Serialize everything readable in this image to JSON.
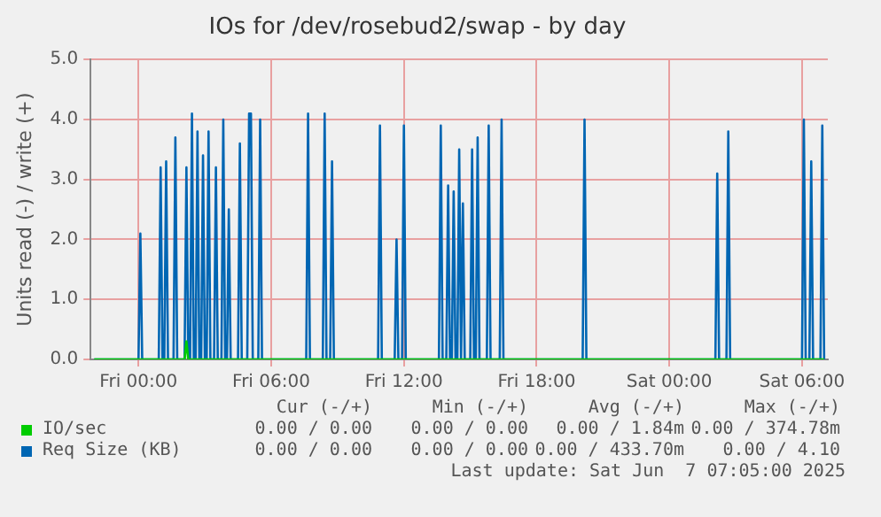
{
  "chart_data": {
    "type": "line",
    "title": "IOs for /dev/rosebud2/swap - by day",
    "ylabel": "Units read (-) / write (+)",
    "xlim": [
      "2025-06-05T21:50",
      "2025-06-07T07:10"
    ],
    "xticks": [
      {
        "value": "2025-06-06T00:00",
        "label": "Fri 00:00"
      },
      {
        "value": "2025-06-06T06:00",
        "label": "Fri 06:00"
      },
      {
        "value": "2025-06-06T12:00",
        "label": "Fri 12:00"
      },
      {
        "value": "2025-06-06T18:00",
        "label": "Fri 18:00"
      },
      {
        "value": "2025-06-07T00:00",
        "label": "Sat 00:00"
      },
      {
        "value": "2025-06-07T06:00",
        "label": "Sat 06:00"
      }
    ],
    "ylim": [
      0,
      5
    ],
    "yticks": [
      {
        "value": 0,
        "label": "0.0"
      },
      {
        "value": 1,
        "label": "1.0"
      },
      {
        "value": 2,
        "label": "2.0"
      },
      {
        "value": 3,
        "label": "3.0"
      },
      {
        "value": 4,
        "label": "4.0"
      },
      {
        "value": 5,
        "label": "5.0"
      }
    ],
    "grid": true,
    "legend": "bottom",
    "marker": "none",
    "line_style": "solid",
    "series": [
      {
        "name": "IO/sec",
        "color": "#00cc00",
        "x": [
          "2025-06-05T22:00",
          "2025-06-06T02:05",
          "2025-06-06T02:10",
          "2025-06-06T02:15",
          "2025-06-07T07:00"
        ],
        "values": [
          0,
          0,
          0.3,
          0,
          0
        ]
      },
      {
        "name": "Req Size (KB)",
        "color": "#0066b3",
        "x": [
          "2025-06-05T22:00",
          "2025-06-06T00:00",
          "2025-06-06T00:05",
          "2025-06-06T00:10",
          "2025-06-06T00:55",
          "2025-06-06T01:00",
          "2025-06-06T01:05",
          "2025-06-06T01:10",
          "2025-06-06T01:15",
          "2025-06-06T01:20",
          "2025-06-06T01:35",
          "2025-06-06T01:40",
          "2025-06-06T01:45",
          "2025-06-06T02:05",
          "2025-06-06T02:10",
          "2025-06-06T02:15",
          "2025-06-06T02:20",
          "2025-06-06T02:25",
          "2025-06-06T02:30",
          "2025-06-06T02:35",
          "2025-06-06T02:40",
          "2025-06-06T02:45",
          "2025-06-06T02:50",
          "2025-06-06T02:55",
          "2025-06-06T03:00",
          "2025-06-06T03:05",
          "2025-06-06T03:10",
          "2025-06-06T03:15",
          "2025-06-06T03:25",
          "2025-06-06T03:30",
          "2025-06-06T03:35",
          "2025-06-06T03:45",
          "2025-06-06T03:50",
          "2025-06-06T03:55",
          "2025-06-06T04:00",
          "2025-06-06T04:05",
          "2025-06-06T04:10",
          "2025-06-06T04:30",
          "2025-06-06T04:35",
          "2025-06-06T04:40",
          "2025-06-06T04:55",
          "2025-06-06T05:00",
          "2025-06-06T05:05",
          "2025-06-06T05:10",
          "2025-06-06T05:25",
          "2025-06-06T05:30",
          "2025-06-06T05:35",
          "2025-06-06T07:35",
          "2025-06-06T07:40",
          "2025-06-06T07:45",
          "2025-06-06T08:20",
          "2025-06-06T08:25",
          "2025-06-06T08:30",
          "2025-06-06T08:40",
          "2025-06-06T08:45",
          "2025-06-06T08:50",
          "2025-06-06T10:50",
          "2025-06-06T10:55",
          "2025-06-06T11:00",
          "2025-06-06T11:35",
          "2025-06-06T11:40",
          "2025-06-06T11:45",
          "2025-06-06T11:55",
          "2025-06-06T12:00",
          "2025-06-06T12:05",
          "2025-06-06T13:35",
          "2025-06-06T13:40",
          "2025-06-06T13:45",
          "2025-06-06T13:55",
          "2025-06-06T14:00",
          "2025-06-06T14:05",
          "2025-06-06T14:10",
          "2025-06-06T14:15",
          "2025-06-06T14:20",
          "2025-06-06T14:25",
          "2025-06-06T14:30",
          "2025-06-06T14:35",
          "2025-06-06T14:40",
          "2025-06-06T14:45",
          "2025-06-06T15:00",
          "2025-06-06T15:05",
          "2025-06-06T15:10",
          "2025-06-06T15:15",
          "2025-06-06T15:20",
          "2025-06-06T15:25",
          "2025-06-06T15:45",
          "2025-06-06T15:50",
          "2025-06-06T15:55",
          "2025-06-06T16:20",
          "2025-06-06T16:25",
          "2025-06-06T16:30",
          "2025-06-06T20:05",
          "2025-06-06T20:10",
          "2025-06-06T20:15",
          "2025-06-07T02:05",
          "2025-06-07T02:10",
          "2025-06-07T02:15",
          "2025-06-07T02:35",
          "2025-06-07T02:40",
          "2025-06-07T02:45",
          "2025-06-07T06:00",
          "2025-06-07T06:05",
          "2025-06-07T06:10",
          "2025-06-07T06:20",
          "2025-06-07T06:25",
          "2025-06-07T06:30",
          "2025-06-07T06:50",
          "2025-06-07T06:55",
          "2025-06-07T07:00"
        ],
        "values": [
          0,
          0,
          2.1,
          0,
          0,
          3.2,
          0,
          0,
          3.3,
          0,
          0,
          3.7,
          0,
          0,
          3.2,
          0,
          0,
          4.1,
          0,
          0,
          3.8,
          0,
          0,
          3.4,
          0,
          0,
          3.8,
          0,
          0,
          3.2,
          0,
          0,
          4.0,
          0,
          0,
          2.5,
          0,
          0,
          3.6,
          0,
          0,
          4.1,
          4.1,
          0,
          0,
          4.0,
          0,
          0,
          4.1,
          0,
          0,
          4.1,
          0,
          0,
          3.3,
          0,
          0,
          3.9,
          0,
          0,
          2.0,
          0,
          0,
          3.9,
          0,
          0,
          3.9,
          0,
          0,
          2.9,
          0,
          0,
          2.8,
          0,
          0,
          3.5,
          0,
          2.6,
          0,
          0,
          3.5,
          0,
          0,
          3.7,
          0,
          0,
          3.9,
          0,
          0,
          4.0,
          0,
          0,
          4.0,
          0,
          0,
          3.1,
          0,
          0,
          3.8,
          0,
          0,
          4.0,
          0,
          0,
          3.3,
          0,
          0,
          3.9,
          0
        ]
      }
    ],
    "annotations": [
      "Cur (-/+)",
      "Min (-/+)",
      "Avg (-/+)",
      "Max (-/+)",
      "0.00 / 0.00",
      "0.00 / 0.00",
      "0.00 / 1.84m",
      "0.00 / 374.78m",
      "0.00 / 0.00",
      "0.00 / 0.00",
      "0.00 / 433.70m",
      "0.00 / 4.10",
      "Last update: Sat Jun  7 07:05:00 2025"
    ]
  }
}
